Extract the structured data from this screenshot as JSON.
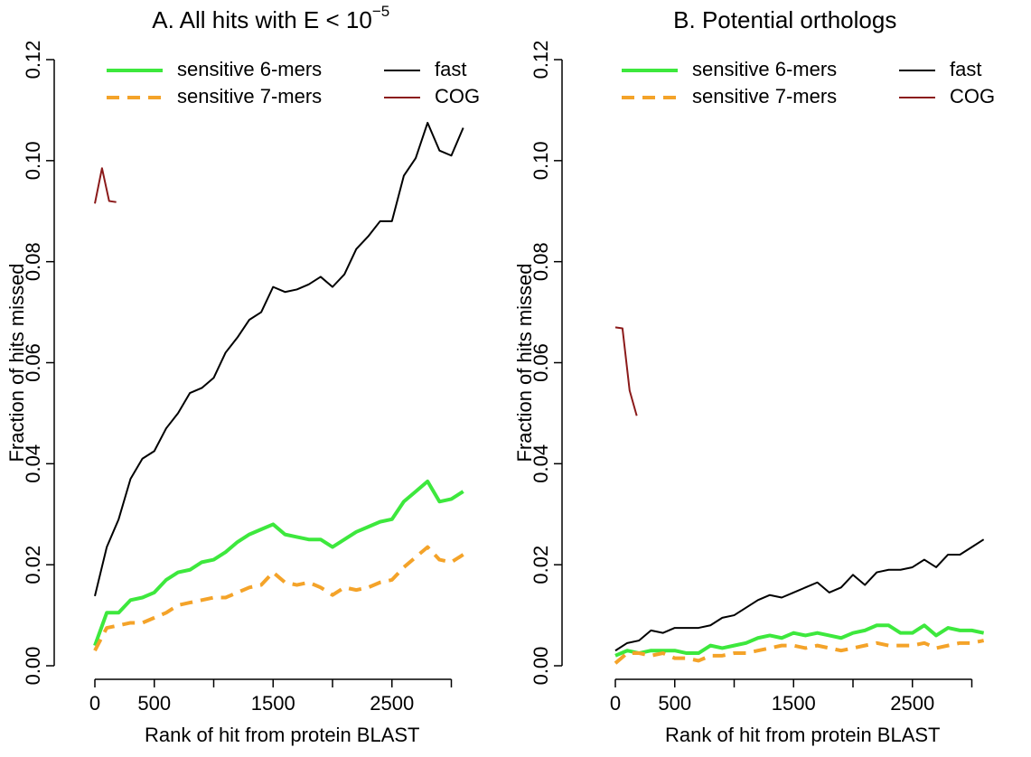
{
  "chart_data": [
    {
      "type": "line",
      "title": "A. All hits with E < 10",
      "title_superscript": "−5",
      "x_label": "Rank of hit from protein BLAST",
      "y_label": "Fraction of hits missed",
      "xlim": [
        0,
        3000
      ],
      "ylim": [
        0,
        0.12
      ],
      "xticks": [
        0,
        500,
        1500,
        2500
      ],
      "xticks_unlabeled": [
        1000,
        2000,
        3000
      ],
      "yticks": [
        {
          "value": 0,
          "label": "0.00"
        },
        {
          "value": 0.02,
          "label": "0.02"
        },
        {
          "value": 0.04,
          "label": "0.04"
        },
        {
          "value": 0.06,
          "label": "0.06"
        },
        {
          "value": 0.08,
          "label": "0.08"
        },
        {
          "value": 0.1,
          "label": "0.10"
        },
        {
          "value": 0.12,
          "label": "0.12"
        }
      ],
      "x": [
        0,
        100,
        200,
        300,
        400,
        500,
        600,
        700,
        800,
        900,
        1000,
        1100,
        1200,
        1300,
        1400,
        1500,
        1600,
        1700,
        1800,
        1900,
        2000,
        2100,
        2200,
        2300,
        2400,
        2500,
        2600,
        2700,
        2800,
        2900,
        3000,
        3100
      ],
      "series": [
        {
          "name": "sensitive 6-mers",
          "color": "#3de83d",
          "line_style": "solid",
          "line_width": 4,
          "values": [
            0.004,
            0.0105,
            0.0105,
            0.013,
            0.0135,
            0.0145,
            0.017,
            0.0185,
            0.019,
            0.0205,
            0.021,
            0.0225,
            0.0245,
            0.026,
            0.027,
            0.028,
            0.026,
            0.0255,
            0.025,
            0.025,
            0.0235,
            0.025,
            0.0265,
            0.0275,
            0.0285,
            0.029,
            0.0325,
            0.0345,
            0.0365,
            0.0325,
            0.033,
            0.0345
          ]
        },
        {
          "name": "sensitive 7-mers",
          "color": "#f4a329",
          "line_style": "dashed",
          "line_width": 4,
          "values": [
            0.003,
            0.0075,
            0.008,
            0.0085,
            0.0085,
            0.0095,
            0.0105,
            0.012,
            0.0125,
            0.013,
            0.0135,
            0.0135,
            0.0145,
            0.0155,
            0.016,
            0.0185,
            0.0165,
            0.016,
            0.0165,
            0.0155,
            0.014,
            0.0155,
            0.015,
            0.0155,
            0.0165,
            0.017,
            0.0195,
            0.0215,
            0.0235,
            0.021,
            0.0205,
            0.022
          ]
        },
        {
          "name": "fast",
          "color": "#000000",
          "line_style": "solid",
          "line_width": 2,
          "values": [
            0.0138,
            0.0235,
            0.029,
            0.037,
            0.041,
            0.0425,
            0.047,
            0.05,
            0.054,
            0.055,
            0.057,
            0.062,
            0.065,
            0.0685,
            0.07,
            0.075,
            0.074,
            0.0745,
            0.0755,
            0.077,
            0.075,
            0.0775,
            0.0825,
            0.085,
            0.088,
            0.088,
            0.097,
            0.1005,
            0.1075,
            0.102,
            0.101,
            0.1065
          ]
        },
        {
          "name": "COG",
          "color": "#8b1a1a",
          "line_style": "solid",
          "line_width": 2,
          "x": [
            0,
            60,
            120,
            180
          ],
          "values": [
            0.0915,
            0.0985,
            0.092,
            0.0918
          ]
        }
      ]
    },
    {
      "type": "line",
      "title": "B. Potential orthologs",
      "x_label": "Rank of hit from protein BLAST",
      "y_label": "Fraction of hits missed",
      "xlim": [
        0,
        3000
      ],
      "ylim": [
        0,
        0.12
      ],
      "xticks": [
        0,
        500,
        1500,
        2500
      ],
      "xticks_unlabeled": [
        1000,
        2000,
        3000
      ],
      "yticks": [
        {
          "value": 0,
          "label": "0.00"
        },
        {
          "value": 0.02,
          "label": "0.02"
        },
        {
          "value": 0.04,
          "label": "0.04"
        },
        {
          "value": 0.06,
          "label": "0.06"
        },
        {
          "value": 0.08,
          "label": "0.08"
        },
        {
          "value": 0.1,
          "label": "0.10"
        },
        {
          "value": 0.12,
          "label": "0.12"
        }
      ],
      "x": [
        0,
        100,
        200,
        300,
        400,
        500,
        600,
        700,
        800,
        900,
        1000,
        1100,
        1200,
        1300,
        1400,
        1500,
        1600,
        1700,
        1800,
        1900,
        2000,
        2100,
        2200,
        2300,
        2400,
        2500,
        2600,
        2700,
        2800,
        2900,
        3000,
        3100
      ],
      "series": [
        {
          "name": "sensitive 6-mers",
          "color": "#3de83d",
          "line_style": "solid",
          "line_width": 4,
          "values": [
            0.002,
            0.003,
            0.0025,
            0.003,
            0.003,
            0.003,
            0.0025,
            0.0025,
            0.004,
            0.0035,
            0.004,
            0.0045,
            0.0055,
            0.006,
            0.0055,
            0.0065,
            0.006,
            0.0065,
            0.006,
            0.0055,
            0.0065,
            0.007,
            0.008,
            0.008,
            0.0065,
            0.0065,
            0.008,
            0.006,
            0.0075,
            0.007,
            0.007,
            0.0065
          ]
        },
        {
          "name": "sensitive 7-mers",
          "color": "#f4a329",
          "line_style": "dashed",
          "line_width": 4,
          "values": [
            0.0005,
            0.0025,
            0.0025,
            0.002,
            0.0025,
            0.0015,
            0.0015,
            0.001,
            0.002,
            0.002,
            0.0025,
            0.0025,
            0.003,
            0.0035,
            0.004,
            0.004,
            0.0035,
            0.004,
            0.0035,
            0.003,
            0.0035,
            0.004,
            0.0045,
            0.004,
            0.004,
            0.004,
            0.0045,
            0.0035,
            0.004,
            0.0045,
            0.0045,
            0.005
          ]
        },
        {
          "name": "fast",
          "color": "#000000",
          "line_style": "solid",
          "line_width": 2,
          "values": [
            0.003,
            0.0045,
            0.005,
            0.007,
            0.0065,
            0.0075,
            0.0075,
            0.0075,
            0.008,
            0.0095,
            0.01,
            0.0115,
            0.013,
            0.014,
            0.0135,
            0.0145,
            0.0155,
            0.0165,
            0.0145,
            0.0155,
            0.018,
            0.016,
            0.0185,
            0.019,
            0.019,
            0.0195,
            0.021,
            0.0195,
            0.022,
            0.022,
            0.0235,
            0.025
          ]
        },
        {
          "name": "COG",
          "color": "#8b1a1a",
          "line_style": "solid",
          "line_width": 2,
          "x": [
            0,
            60,
            120,
            180
          ],
          "values": [
            0.067,
            0.0668,
            0.0545,
            0.0495
          ]
        }
      ]
    }
  ]
}
